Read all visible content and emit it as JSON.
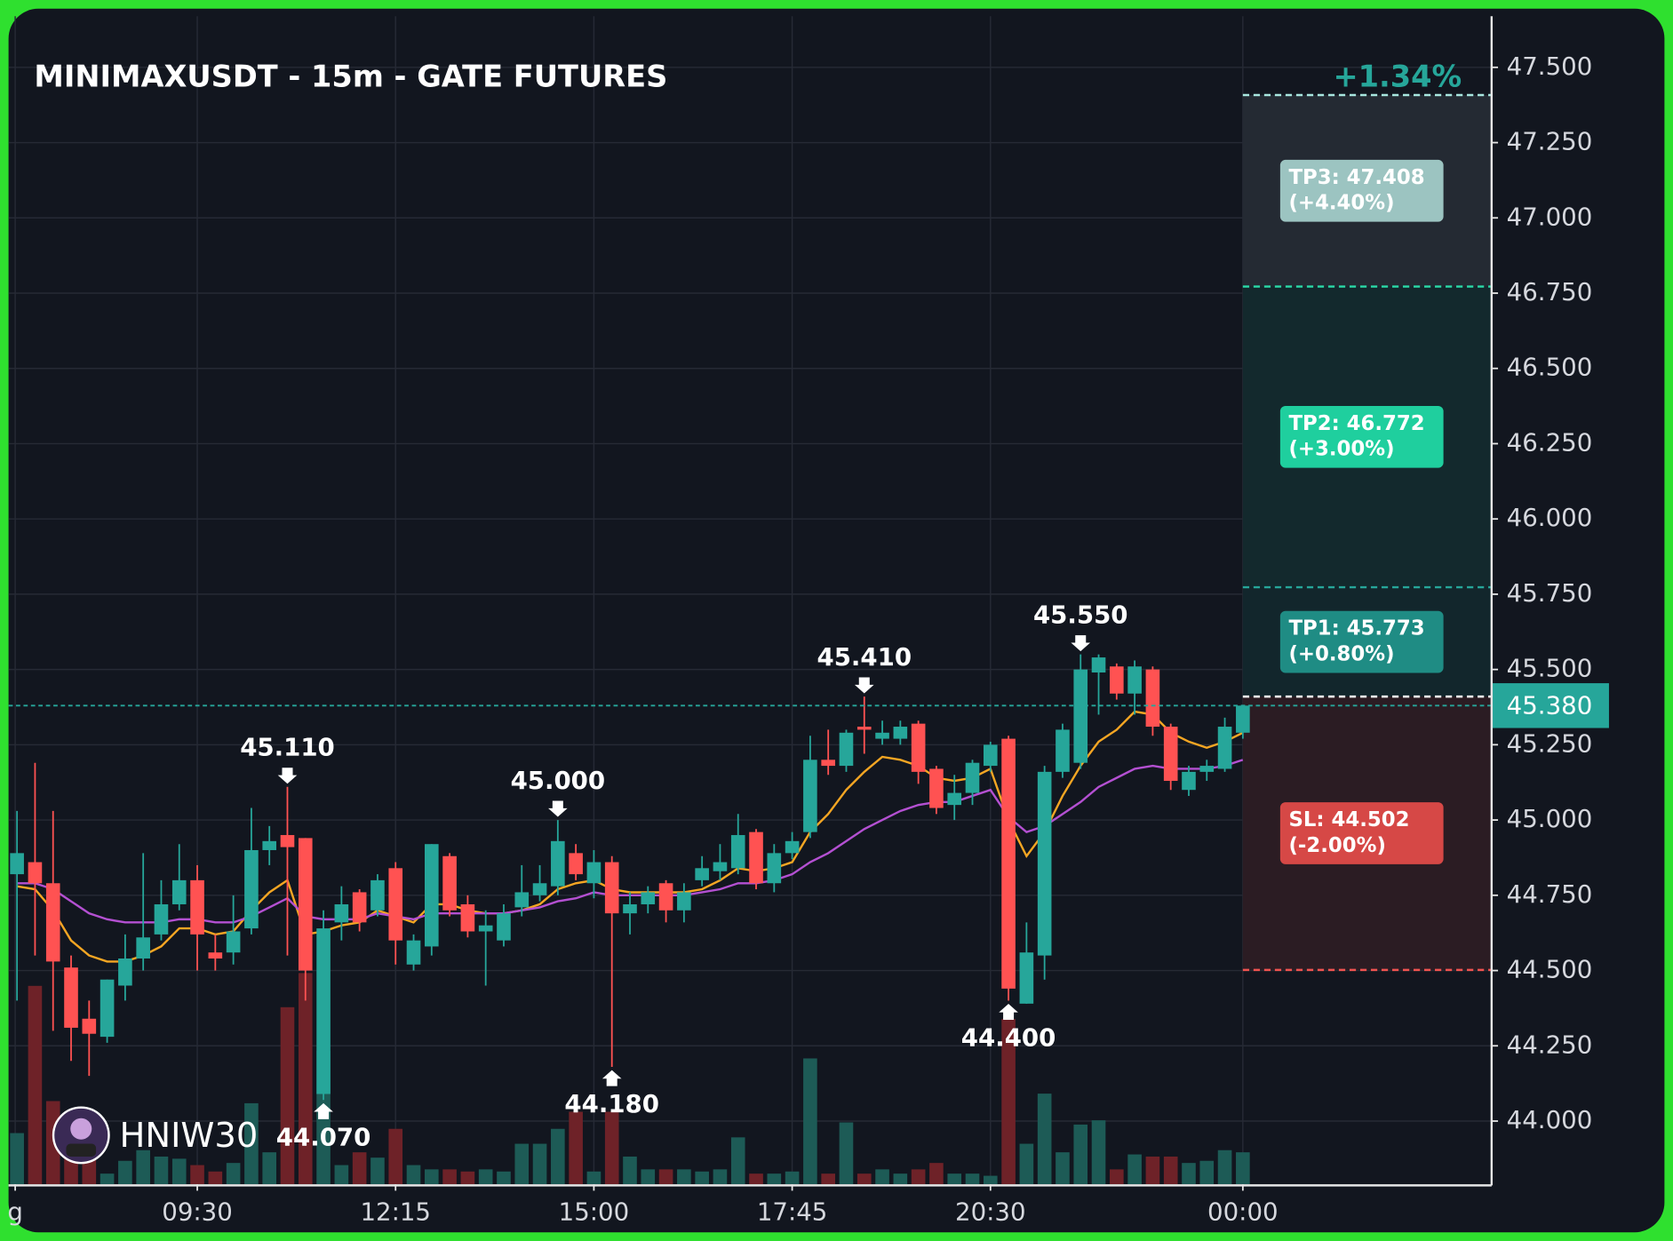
{
  "chart_data": {
    "type": "candlestick",
    "title": "MINIMAXUSDT - 15m - GATE FUTURES",
    "change_label": "+1.34%",
    "watermark": "HNIW30",
    "ylim": [
      43.79,
      47.67
    ],
    "yticks": [
      {
        "value": 44,
        "label": "44.000"
      },
      {
        "value": 44.25,
        "label": "44.250"
      },
      {
        "value": 44.5,
        "label": "44.500"
      },
      {
        "value": 44.75,
        "label": "44.750"
      },
      {
        "value": 45,
        "label": "45.000"
      },
      {
        "value": 45.25,
        "label": "45.250"
      },
      {
        "value": 45.5,
        "label": "45.500"
      },
      {
        "value": 45.75,
        "label": "45.750"
      },
      {
        "value": 46,
        "label": "46.000"
      },
      {
        "value": 46.25,
        "label": "46.250"
      },
      {
        "value": 46.5,
        "label": "46.500"
      },
      {
        "value": 46.75,
        "label": "46.750"
      },
      {
        "value": 47,
        "label": "47.000"
      },
      {
        "value": 47.25,
        "label": "47.250"
      },
      {
        "value": 47.5,
        "label": "47.500"
      }
    ],
    "xlim": [
      -0.47,
      81.8
    ],
    "xticks": [
      {
        "value": -0.1,
        "label": "g"
      },
      {
        "value": 10,
        "label": "09:30"
      },
      {
        "value": 21,
        "label": "12:15"
      },
      {
        "value": 32,
        "label": "15:00"
      },
      {
        "value": 43,
        "label": "17:45"
      },
      {
        "value": 54,
        "label": "20:30"
      },
      {
        "value": 68,
        "label": "00:00"
      }
    ],
    "grid": true,
    "up_color": "#26a69a",
    "down_color": "#ff5252",
    "volume_up_color": "#1d5b56",
    "volume_down_color": "#6e2228",
    "open": [
      44.82,
      44.86,
      44.79,
      44.51,
      44.34,
      44.28,
      44.45,
      44.54,
      44.62,
      44.72,
      44.8,
      44.56,
      44.56,
      44.64,
      44.9,
      44.95,
      44.94,
      44.09,
      44.66,
      44.76,
      44.7,
      44.84,
      44.52,
      44.58,
      44.88,
      44.72,
      44.63,
      44.6,
      44.71,
      44.75,
      44.78,
      44.89,
      44.79,
      44.86,
      44.69,
      44.72,
      44.79,
      44.7,
      44.8,
      44.83,
      44.84,
      44.96,
      44.79,
      44.89,
      44.96,
      45.2,
      45.18,
      45.31,
      45.27,
      45.27,
      45.32,
      45.17,
      45.05,
      45.09,
      45.18,
      45.27,
      44.39,
      44.55,
      45.16,
      45.19,
      45.49,
      45.51,
      45.42,
      45.5,
      45.31,
      45.1,
      45.16,
      45.17,
      45.29
    ],
    "high": [
      45.03,
      45.19,
      45.03,
      44.55,
      44.4,
      44.47,
      44.62,
      44.89,
      44.8,
      44.92,
      44.85,
      44.62,
      44.75,
      45.04,
      44.98,
      45.11,
      44.94,
      44.7,
      44.78,
      44.77,
      44.82,
      44.86,
      44.62,
      44.92,
      44.89,
      44.75,
      44.7,
      44.72,
      44.85,
      44.85,
      45.0,
      44.92,
      44.9,
      44.88,
      44.76,
      44.78,
      44.8,
      44.79,
      44.88,
      44.92,
      45.02,
      44.97,
      44.92,
      44.96,
      45.28,
      45.3,
      45.3,
      45.41,
      45.33,
      45.33,
      45.33,
      45.18,
      45.15,
      45.2,
      45.26,
      45.28,
      44.66,
      45.18,
      45.32,
      45.55,
      45.55,
      45.52,
      45.53,
      45.51,
      45.32,
      45.18,
      45.2,
      45.34,
      45.38
    ],
    "low": [
      44.4,
      44.55,
      44.3,
      44.2,
      44.15,
      44.26,
      44.4,
      44.5,
      44.6,
      44.7,
      44.5,
      44.5,
      44.52,
      44.62,
      44.85,
      44.55,
      44.4,
      44.07,
      44.6,
      44.63,
      44.68,
      44.52,
      44.5,
      44.55,
      44.68,
      44.61,
      44.45,
      44.58,
      44.68,
      44.73,
      44.75,
      44.8,
      44.74,
      44.18,
      44.62,
      44.69,
      44.66,
      44.66,
      44.78,
      44.8,
      44.82,
      44.77,
      44.76,
      44.87,
      44.94,
      45.15,
      45.16,
      45.22,
      45.25,
      45.25,
      45.12,
      45.02,
      45.0,
      45.05,
      45.16,
      44.4,
      44.39,
      44.47,
      45.14,
      45.17,
      45.35,
      45.4,
      45.35,
      45.28,
      45.1,
      45.08,
      45.13,
      45.16,
      45.27
    ],
    "close": [
      44.89,
      44.79,
      44.53,
      44.31,
      44.29,
      44.47,
      44.54,
      44.61,
      44.72,
      44.8,
      44.62,
      44.54,
      44.63,
      44.9,
      44.93,
      44.91,
      44.5,
      44.64,
      44.72,
      44.66,
      44.8,
      44.6,
      44.6,
      44.92,
      44.7,
      44.63,
      44.65,
      44.69,
      44.76,
      44.79,
      44.93,
      44.82,
      44.86,
      44.69,
      44.72,
      44.76,
      44.7,
      44.76,
      44.84,
      44.86,
      44.95,
      44.79,
      44.89,
      44.93,
      45.2,
      45.18,
      45.29,
      45.3,
      45.29,
      45.31,
      45.16,
      45.04,
      45.09,
      45.19,
      45.25,
      44.44,
      44.56,
      45.16,
      45.3,
      45.5,
      45.54,
      45.42,
      45.51,
      45.31,
      45.13,
      45.16,
      45.18,
      45.31,
      45.38
    ],
    "volume_lim": [
      0,
      400
    ],
    "volume": [
      48,
      186,
      78,
      60,
      25,
      10,
      22,
      32,
      26,
      24,
      18,
      12,
      20,
      76,
      30,
      166,
      198,
      125,
      18,
      30,
      25,
      52,
      18,
      14,
      14,
      12,
      14,
      12,
      38,
      38,
      52,
      68,
      12,
      68,
      26,
      14,
      14,
      14,
      12,
      14,
      44,
      10,
      10,
      12,
      118,
      10,
      58,
      10,
      14,
      10,
      14,
      20,
      10,
      10,
      8,
      155,
      38,
      85,
      30,
      56,
      60,
      14,
      28,
      26,
      26,
      20,
      22,
      32,
      30
    ],
    "series": [
      {
        "color": "#f5a623",
        "values": [
          44.78,
          44.77,
          44.7,
          44.6,
          44.55,
          44.53,
          44.53,
          44.55,
          44.58,
          44.64,
          44.64,
          44.62,
          44.63,
          44.7,
          44.76,
          44.8,
          44.62,
          44.63,
          44.65,
          44.66,
          44.7,
          44.68,
          44.66,
          44.72,
          44.72,
          44.7,
          44.69,
          44.69,
          44.7,
          44.72,
          44.77,
          44.79,
          44.8,
          44.77,
          44.76,
          44.76,
          44.76,
          44.76,
          44.77,
          44.8,
          44.84,
          44.83,
          44.84,
          44.86,
          44.96,
          45.02,
          45.1,
          45.16,
          45.21,
          45.2,
          45.18,
          45.14,
          45.13,
          45.14,
          45.17,
          45.0,
          44.88,
          44.96,
          45.08,
          45.18,
          45.26,
          45.3,
          45.36,
          45.35,
          45.29,
          45.26,
          45.24,
          45.26,
          45.29
        ]
      },
      {
        "color": "#b450d2",
        "values": [
          44.79,
          44.79,
          44.77,
          44.73,
          44.69,
          44.67,
          44.66,
          44.66,
          44.66,
          44.67,
          44.67,
          44.66,
          44.66,
          44.68,
          44.71,
          44.74,
          44.68,
          44.67,
          44.67,
          44.67,
          44.69,
          44.68,
          44.67,
          44.69,
          44.69,
          44.69,
          44.69,
          44.69,
          44.7,
          44.71,
          44.73,
          44.74,
          44.76,
          44.75,
          44.75,
          44.75,
          44.75,
          44.75,
          44.76,
          44.77,
          44.79,
          44.79,
          44.8,
          44.82,
          44.86,
          44.89,
          44.93,
          44.97,
          45.0,
          45.03,
          45.05,
          45.06,
          45.06,
          45.08,
          45.1,
          45.01,
          44.96,
          44.98,
          45.02,
          45.06,
          45.11,
          45.14,
          45.17,
          45.18,
          45.17,
          45.17,
          45.17,
          45.18,
          45.2
        ]
      }
    ],
    "annotations": [
      {
        "index": 15,
        "value": 45.11,
        "label": "45.110",
        "position": "above"
      },
      {
        "index": 17,
        "value": 44.07,
        "label": "44.070",
        "position": "below"
      },
      {
        "index": 30,
        "value": 45.0,
        "label": "45.000",
        "position": "above"
      },
      {
        "index": 33,
        "value": 44.18,
        "label": "44.180",
        "position": "below"
      },
      {
        "index": 47,
        "value": 45.41,
        "label": "45.410",
        "position": "above"
      },
      {
        "index": 55,
        "value": 44.4,
        "label": "44.400",
        "position": "below"
      },
      {
        "index": 59,
        "value": 45.55,
        "label": "45.550",
        "position": "above"
      }
    ],
    "last_price": {
      "value": 45.38,
      "label": "45.380",
      "color": "#26a69a"
    },
    "trade": {
      "entry": 45.41,
      "entry_color": "#ffffff",
      "levels": [
        {
          "label": "TP1: 45.773",
          "pct": "(+0.80%)",
          "price": 45.773,
          "line_color": "#26a69a",
          "zone_color": "#12262c",
          "box_color": "#1f8c84"
        },
        {
          "label": "TP2: 46.772",
          "pct": "(+3.00%)",
          "price": 46.772,
          "line_color": "#2bd9a8",
          "zone_color": "#13292d",
          "box_color": "#1fcf9e"
        },
        {
          "label": "TP3: 47.408",
          "pct": "(+4.40%)",
          "price": 47.408,
          "line_color": "#a8e6df",
          "zone_color": "#242a33",
          "box_color": "#9cc4c1"
        },
        {
          "label": "SL: 44.502",
          "pct": "(-2.00%)",
          "price": 44.502,
          "line_color": "#ef5350",
          "zone_color": "#2b1c23",
          "box_color": "#d64846",
          "stop": true
        }
      ]
    }
  }
}
